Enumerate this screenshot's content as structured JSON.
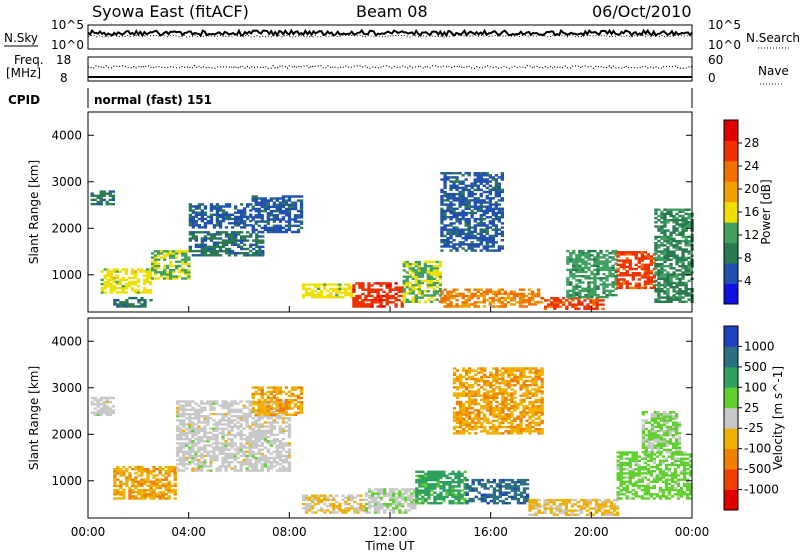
{
  "header": {
    "station": "Syowa East (fitACF)",
    "beam": "Beam 08",
    "date": "06/Oct/2010"
  },
  "top_panels": {
    "nsky_label": "N.Sky",
    "nsky_ticks": [
      "10^5",
      "10^0"
    ],
    "nsearch_label": "N.Search",
    "nsearch_ticks": [
      "10^5",
      "10^0"
    ],
    "freq_label_1": "Freq.",
    "freq_label_2": "[MHz]",
    "freq_ticks": [
      "18",
      "8"
    ],
    "nave_label": "Nave",
    "nave_ticks": [
      "60",
      "0"
    ],
    "cpid_label": "CPID",
    "cpid_text": "normal (fast) 151"
  },
  "colors": {
    "power_scale": [
      "#1010e0",
      "#2050b0",
      "#2a7a50",
      "#40a060",
      "#f0e000",
      "#f0a000",
      "#f07000",
      "#f03000",
      "#e00000"
    ],
    "velocity_scale": [
      "#e00000",
      "#f04000",
      "#f08000",
      "#f0b000",
      "#c8c8c8",
      "#60d030",
      "#30a060",
      "#2a7080",
      "#2040c0"
    ]
  },
  "chart_data": [
    {
      "type": "heatmap",
      "name": "power",
      "ylabel": "Slant Range [km]",
      "yticks": [
        "1000",
        "2000",
        "3000",
        "4000"
      ],
      "ylim": [
        200,
        4500
      ],
      "xlim": [
        0,
        24
      ],
      "colorbar_label": "Power [dB]",
      "colorbar_ticks": [
        "4",
        "8",
        "12",
        "16",
        "20",
        "24",
        "28"
      ],
      "colorbar_range": [
        0,
        32
      ],
      "regions": [
        {
          "t0": 0.1,
          "t1": 1.0,
          "r0": 2500,
          "r1": 2800,
          "v": 8
        },
        {
          "t0": 0.5,
          "t1": 2.5,
          "r0": 600,
          "r1": 1100,
          "v": 16
        },
        {
          "t0": 1.0,
          "t1": 2.5,
          "r0": 300,
          "r1": 500,
          "v": 8
        },
        {
          "t0": 2.5,
          "t1": 4.0,
          "r0": 900,
          "r1": 1500,
          "v": 14
        },
        {
          "t0": 4.0,
          "t1": 6.5,
          "r0": 2000,
          "r1": 2500,
          "v": 6
        },
        {
          "t0": 4.0,
          "t1": 7.0,
          "r0": 1400,
          "r1": 1900,
          "v": 8
        },
        {
          "t0": 6.5,
          "t1": 8.5,
          "r0": 1900,
          "r1": 2700,
          "v": 6
        },
        {
          "t0": 8.5,
          "t1": 10.5,
          "r0": 500,
          "r1": 800,
          "v": 16
        },
        {
          "t0": 10.5,
          "t1": 12.5,
          "r0": 300,
          "r1": 800,
          "v": 27
        },
        {
          "t0": 12.5,
          "t1": 14.0,
          "r0": 400,
          "r1": 1300,
          "v": 14
        },
        {
          "t0": 14.0,
          "t1": 16.5,
          "r0": 1500,
          "r1": 3200,
          "v": 6
        },
        {
          "t0": 14.0,
          "t1": 18.0,
          "r0": 300,
          "r1": 700,
          "v": 22
        },
        {
          "t0": 18.0,
          "t1": 20.5,
          "r0": 250,
          "r1": 500,
          "v": 26
        },
        {
          "t0": 19.0,
          "t1": 21.0,
          "r0": 500,
          "r1": 1500,
          "v": 12
        },
        {
          "t0": 21.0,
          "t1": 22.5,
          "r0": 700,
          "r1": 1500,
          "v": 26
        },
        {
          "t0": 22.5,
          "t1": 24.0,
          "r0": 400,
          "r1": 2400,
          "v": 10
        }
      ]
    },
    {
      "type": "heatmap",
      "name": "velocity",
      "ylabel": "Slant Range [km]",
      "yticks": [
        "1000",
        "2000",
        "3000",
        "4000"
      ],
      "ylim": [
        200,
        4500
      ],
      "xlim": [
        0,
        24
      ],
      "xlabel": "Time UT",
      "xticks": [
        "00:00",
        "04:00",
        "08:00",
        "12:00",
        "16:00",
        "20:00",
        "00:00"
      ],
      "colorbar_label": "Velocity [m s^-1]",
      "colorbar_ticks": [
        "1000",
        "500",
        "100",
        "25",
        "-25",
        "-100",
        "-500",
        "-1000"
      ],
      "colorbar_range": [
        -1000,
        1000
      ],
      "regions": [
        {
          "t0": 0.1,
          "t1": 1.0,
          "r0": 2400,
          "r1": 2800,
          "v": 0
        },
        {
          "t0": 1.0,
          "t1": 3.5,
          "r0": 600,
          "r1": 1300,
          "v": -300
        },
        {
          "t0": 3.5,
          "t1": 8.0,
          "r0": 1200,
          "r1": 2700,
          "v": 0
        },
        {
          "t0": 6.5,
          "t1": 8.5,
          "r0": 2400,
          "r1": 3000,
          "v": -300
        },
        {
          "t0": 8.5,
          "t1": 11.0,
          "r0": 300,
          "r1": 700,
          "v": -100
        },
        {
          "t0": 11.0,
          "t1": 13.0,
          "r0": 300,
          "r1": 800,
          "v": 50
        },
        {
          "t0": 13.0,
          "t1": 15.0,
          "r0": 500,
          "r1": 1200,
          "v": 400
        },
        {
          "t0": 15.0,
          "t1": 17.5,
          "r0": 500,
          "r1": 1000,
          "v": 700
        },
        {
          "t0": 14.5,
          "t1": 18.0,
          "r0": 2000,
          "r1": 3400,
          "v": -300
        },
        {
          "t0": 17.5,
          "t1": 21.0,
          "r0": 250,
          "r1": 600,
          "v": -150
        },
        {
          "t0": 21.0,
          "t1": 24.0,
          "r0": 600,
          "r1": 1600,
          "v": 200
        },
        {
          "t0": 22.0,
          "t1": 23.5,
          "r0": 1600,
          "r1": 2500,
          "v": 150
        }
      ]
    }
  ]
}
